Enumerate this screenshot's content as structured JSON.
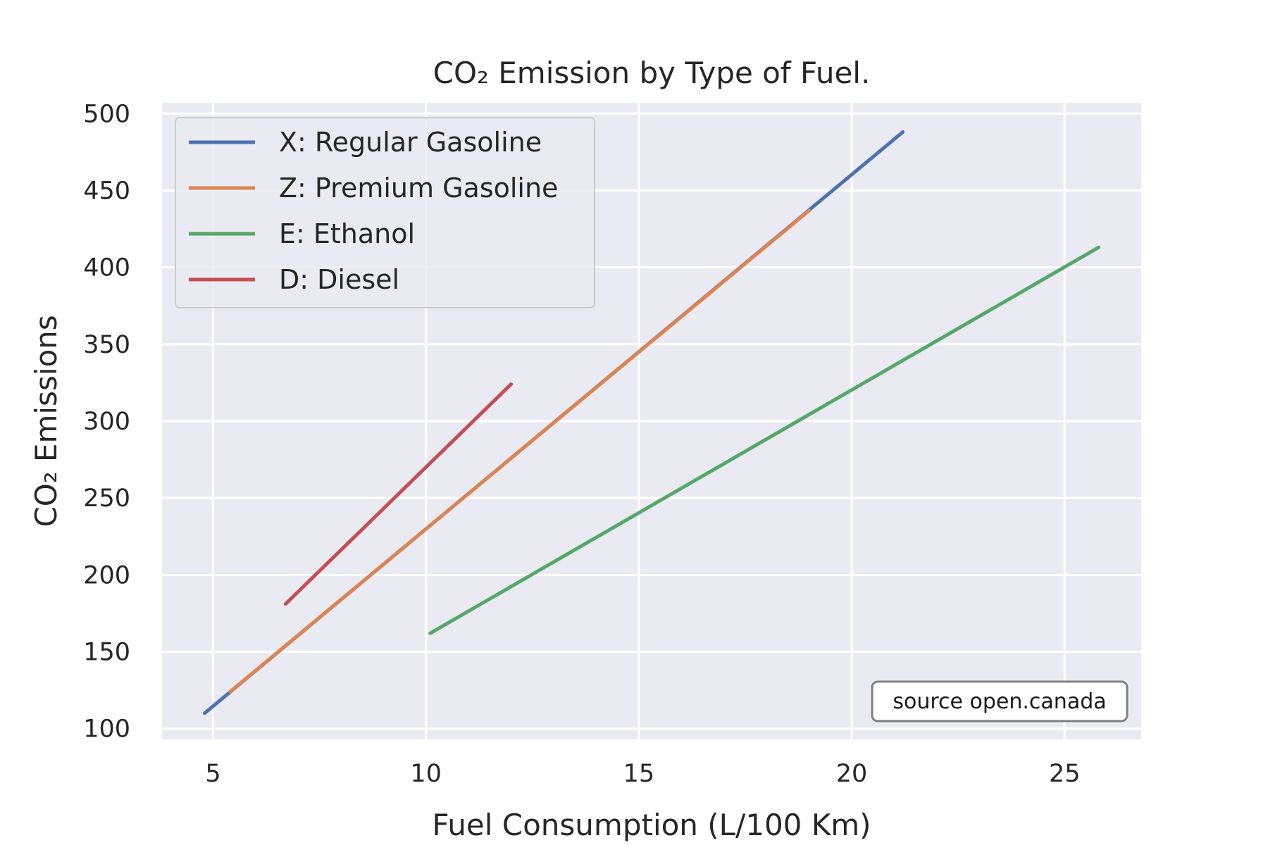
{
  "chart_data": {
    "type": "line",
    "title": "CO₂ Emission by Type of Fuel.",
    "xlabel": "Fuel Consumption (L/100 Km)",
    "ylabel": "CO₂ Emissions",
    "xlim": [
      3.8,
      26.8
    ],
    "ylim": [
      93,
      507
    ],
    "x_ticks": [
      5,
      10,
      15,
      20,
      25
    ],
    "y_ticks": [
      100,
      150,
      200,
      250,
      300,
      350,
      400,
      450,
      500
    ],
    "grid": true,
    "legend_position": "top-left",
    "annotation": "source open.canada",
    "series": [
      {
        "name": "X: Regular Gasoline",
        "color": "#4c72b0",
        "x": [
          4.8,
          21.2
        ],
        "y": [
          110,
          488
        ]
      },
      {
        "name": "Z: Premium Gasoline",
        "color": "#dd8452",
        "x": [
          5.4,
          19.0
        ],
        "y": [
          124,
          437
        ]
      },
      {
        "name": "E: Ethanol",
        "color": "#55a868",
        "x": [
          10.1,
          25.8
        ],
        "y": [
          162,
          413
        ]
      },
      {
        "name": "D: Diesel",
        "color": "#c44e52",
        "x": [
          6.7,
          12.0
        ],
        "y": [
          181,
          324
        ]
      }
    ]
  }
}
